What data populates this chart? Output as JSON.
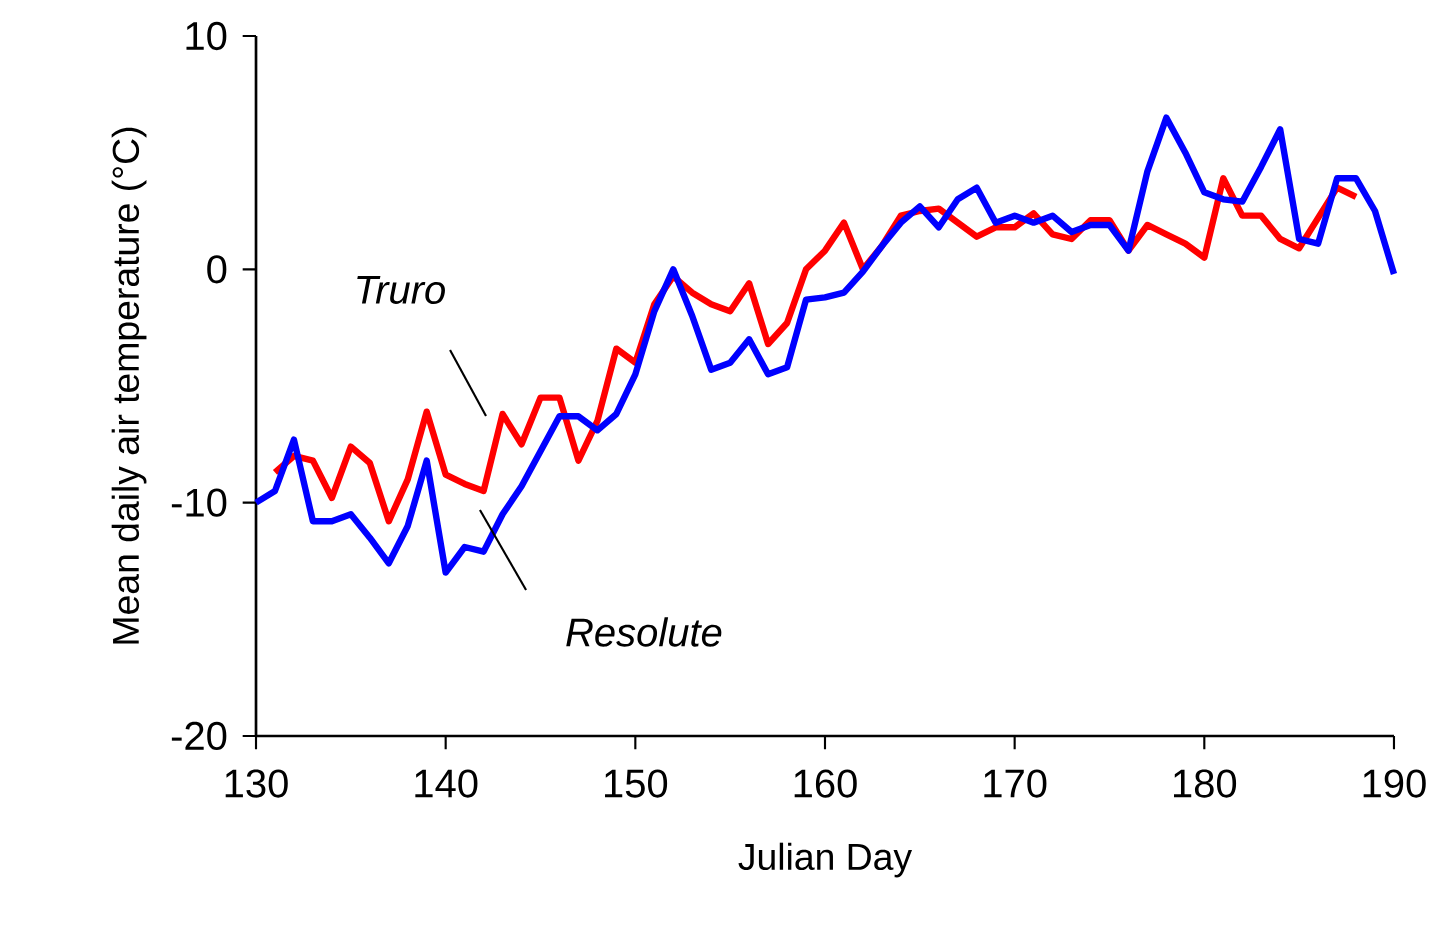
{
  "chart_data": {
    "type": "line",
    "xlabel": "Julian Day",
    "ylabel": "Mean daily air temperature (°C)",
    "xlim": [
      130,
      190
    ],
    "ylim": [
      -20,
      10
    ],
    "xticks": [
      130,
      140,
      150,
      160,
      170,
      180,
      190
    ],
    "yticks": [
      -20,
      -10,
      0,
      10
    ],
    "series": [
      {
        "name": "Truro",
        "color": "#ff0000",
        "x": [
          131,
          132,
          133,
          134,
          135,
          136,
          137,
          138,
          139,
          140,
          141,
          142,
          143,
          144,
          145,
          146,
          147,
          148,
          149,
          150,
          151,
          152,
          153,
          154,
          155,
          156,
          157,
          158,
          159,
          160,
          161,
          162,
          163,
          164,
          165,
          166,
          167,
          168,
          169,
          170,
          171,
          172,
          173,
          174,
          175,
          176,
          177,
          178,
          179,
          180,
          181,
          182,
          183,
          184,
          185,
          186,
          187,
          188
        ],
        "values": [
          -8.7,
          -8.0,
          -8.2,
          -9.8,
          -7.6,
          -8.3,
          -10.8,
          -9.0,
          -6.1,
          -8.8,
          -9.2,
          -9.5,
          -6.2,
          -7.5,
          -5.5,
          -5.5,
          -8.2,
          -6.5,
          -3.4,
          -4.0,
          -1.5,
          -0.3,
          -1.0,
          -1.5,
          -1.8,
          -0.6,
          -3.2,
          -2.3,
          0.0,
          0.8,
          2.0,
          0.0,
          1.0,
          2.3,
          2.5,
          2.6,
          2.0,
          1.4,
          1.8,
          1.8,
          2.4,
          1.5,
          1.3,
          2.1,
          2.1,
          0.8,
          1.9,
          1.5,
          1.1,
          0.5,
          3.9,
          2.3,
          2.3,
          1.3,
          0.9,
          2.2,
          3.5,
          3.1
        ]
      },
      {
        "name": "Resolute",
        "color": "#0000ff",
        "x": [
          130,
          131,
          132,
          133,
          134,
          135,
          136,
          137,
          138,
          139,
          140,
          141,
          142,
          143,
          144,
          145,
          146,
          147,
          148,
          149,
          150,
          151,
          152,
          153,
          154,
          155,
          156,
          157,
          158,
          159,
          160,
          161,
          162,
          163,
          164,
          165,
          166,
          167,
          168,
          169,
          170,
          171,
          172,
          173,
          174,
          175,
          176,
          177,
          178,
          179,
          180,
          181,
          182,
          183,
          184,
          185,
          186,
          187,
          188,
          189,
          190
        ],
        "values": [
          -10.0,
          -9.5,
          -7.3,
          -10.8,
          -10.8,
          -10.5,
          -11.5,
          -12.6,
          -11.0,
          -8.2,
          -13.0,
          -11.9,
          -12.1,
          -10.5,
          -9.3,
          -7.8,
          -6.3,
          -6.3,
          -6.9,
          -6.2,
          -4.5,
          -1.8,
          0.0,
          -2.0,
          -4.3,
          -4.0,
          -3.0,
          -4.5,
          -4.2,
          -1.3,
          -1.2,
          -1.0,
          -0.1,
          1.0,
          2.0,
          2.7,
          1.8,
          3.0,
          3.5,
          2.0,
          2.3,
          2.0,
          2.3,
          1.6,
          1.9,
          1.9,
          0.8,
          4.2,
          6.5,
          5.0,
          3.3,
          3.0,
          2.9,
          4.4,
          6.0,
          1.3,
          1.1,
          3.9,
          3.9,
          2.5,
          -0.2
        ]
      }
    ]
  }
}
